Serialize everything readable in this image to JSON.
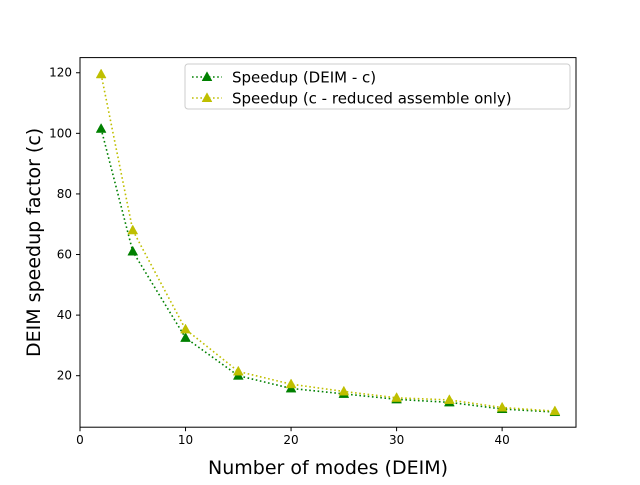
{
  "chart_data": {
    "type": "line",
    "title": "",
    "xlabel": "Number of modes (DEIM)",
    "ylabel": "DEIM speedup factor (c)",
    "xlim": [
      0,
      47
    ],
    "ylim": [
      3,
      125
    ],
    "xticks": [
      0,
      10,
      20,
      30,
      40
    ],
    "yticks": [
      20,
      40,
      60,
      80,
      100,
      120
    ],
    "grid": false,
    "legend_position": "top-right",
    "x": [
      2,
      5,
      10,
      15,
      20,
      25,
      30,
      35,
      40,
      45
    ],
    "series": [
      {
        "name": "Speedup (DEIM - c)",
        "color": "#008000",
        "marker": "triangle-up",
        "linestyle": "dotted",
        "values": [
          101.5,
          61,
          32.5,
          20,
          15.8,
          14,
          12.2,
          11.2,
          9,
          8
        ]
      },
      {
        "name": "Speedup (c - reduced assemble only)",
        "color": "#bfbf00",
        "marker": "triangle-up",
        "linestyle": "dotted",
        "values": [
          119.5,
          68,
          35.3,
          21.4,
          17.2,
          14.8,
          12.7,
          12,
          9.5,
          8.3
        ]
      }
    ]
  }
}
